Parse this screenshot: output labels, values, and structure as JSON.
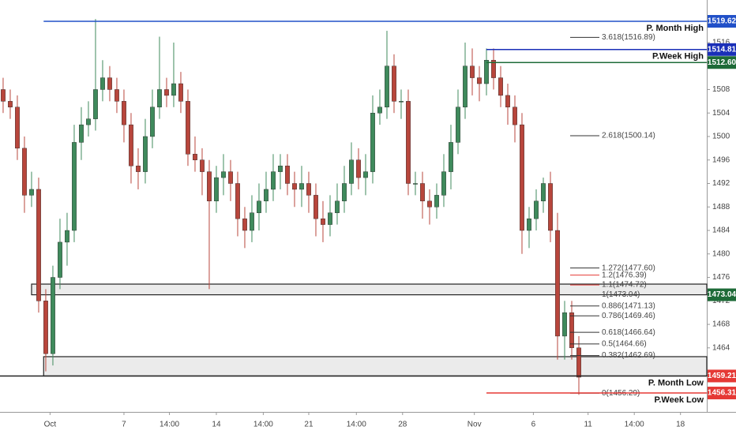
{
  "chart_data": {
    "type": "candlestick",
    "xlim": [
      -0.44,
      99
    ],
    "ylim": [
      1453.09,
      1523.25
    ],
    "yticks": [
      1464,
      1468,
      1472,
      1476,
      1480,
      1484,
      1488,
      1492,
      1496,
      1500,
      1504,
      1508,
      1512,
      1516
    ],
    "xticks": [
      {
        "value": 6.6,
        "label": "Oct"
      },
      {
        "value": 17,
        "label": "7"
      },
      {
        "value": 23.4,
        "label": "14:00"
      },
      {
        "value": 30,
        "label": "14"
      },
      {
        "value": 36.6,
        "label": "14:00"
      },
      {
        "value": 43,
        "label": "21"
      },
      {
        "value": 49.7,
        "label": "14:00"
      },
      {
        "value": 56.2,
        "label": "28"
      },
      {
        "value": 66.3,
        "label": "Nov"
      },
      {
        "value": 74.6,
        "label": "6"
      },
      {
        "value": 82.3,
        "label": "11"
      },
      {
        "value": 88.8,
        "label": "14:00"
      },
      {
        "value": 95.3,
        "label": "18"
      }
    ],
    "up_color": "#3f8a5c",
    "down_color": "#b8463c",
    "open": [
      1508,
      1506,
      1505,
      1498,
      1490,
      1491,
      1472,
      1463,
      1476,
      1482,
      1484,
      1499,
      1502,
      1503,
      1508,
      1510,
      1508,
      1506,
      1502,
      1495,
      1494,
      1500,
      1505,
      1508,
      1507,
      1509,
      1506,
      1497,
      1496,
      1494,
      1489,
      1493,
      1494,
      1492,
      1486,
      1484,
      1487,
      1489,
      1491,
      1494,
      1495,
      1492,
      1491,
      1492,
      1490,
      1486,
      1485,
      1487,
      1489,
      1492,
      1496,
      1493,
      1494,
      1504,
      1505,
      1512,
      1506,
      1506,
      1492,
      1492,
      1489,
      1488,
      1490,
      1494,
      1499,
      1505,
      1512,
      1510,
      1509,
      1513,
      1510,
      1507,
      1505,
      1502,
      1484,
      1486,
      1489,
      1492,
      1484,
      1466,
      1470,
      1464
    ],
    "high": [
      1510,
      1508,
      1507,
      1500,
      1494,
      1493,
      1474,
      1478,
      1486,
      1487,
      1502,
      1505,
      1506,
      1520,
      1513,
      1512,
      1510,
      1508,
      1504,
      1498,
      1503,
      1508,
      1517,
      1510,
      1516,
      1511,
      1508,
      1500,
      1498,
      1496,
      1495,
      1497,
      1496,
      1494,
      1488,
      1490,
      1492,
      1494,
      1497,
      1497,
      1497,
      1494,
      1495,
      1494,
      1492,
      1489,
      1490,
      1492,
      1495,
      1499,
      1498,
      1497,
      1507,
      1508,
      1518,
      1514,
      1508,
      1508,
      1494,
      1494,
      1491,
      1492,
      1497,
      1502,
      1508,
      1516,
      1515,
      1512,
      1515,
      1515,
      1512,
      1509,
      1507,
      1504,
      1488,
      1491,
      1493,
      1494,
      1487,
      1472,
      1472,
      1466
    ],
    "low": [
      1504,
      1503,
      1496,
      1487,
      1488,
      1470,
      1460,
      1461,
      1474,
      1478,
      1482,
      1496,
      1500,
      1501,
      1506,
      1506,
      1504,
      1499,
      1492,
      1491,
      1492,
      1498,
      1503,
      1505,
      1505,
      1504,
      1495,
      1494,
      1490,
      1474,
      1487,
      1490,
      1489,
      1483,
      1481,
      1482,
      1484,
      1487,
      1489,
      1491,
      1490,
      1488,
      1488,
      1487,
      1483,
      1482,
      1483,
      1485,
      1487,
      1490,
      1491,
      1490,
      1492,
      1502,
      1503,
      1504,
      1503,
      1490,
      1490,
      1486,
      1485,
      1486,
      1488,
      1491,
      1497,
      1503,
      1507,
      1506,
      1507,
      1508,
      1505,
      1502,
      1499,
      1480,
      1481,
      1484,
      1487,
      1482,
      1462,
      1462,
      1462,
      1456
    ],
    "close": [
      1506,
      1505,
      1498,
      1490,
      1491,
      1472,
      1463,
      1476,
      1482,
      1484,
      1499,
      1502,
      1503,
      1508,
      1510,
      1508,
      1506,
      1502,
      1495,
      1494,
      1500,
      1505,
      1508,
      1507,
      1509,
      1506,
      1497,
      1496,
      1494,
      1489,
      1493,
      1494,
      1492,
      1486,
      1484,
      1487,
      1489,
      1491,
      1494,
      1495,
      1492,
      1491,
      1492,
      1490,
      1486,
      1485,
      1487,
      1489,
      1492,
      1496,
      1493,
      1494,
      1504,
      1505,
      1512,
      1506,
      1506,
      1492,
      1492,
      1489,
      1488,
      1490,
      1494,
      1499,
      1505,
      1512,
      1510,
      1509,
      1513,
      1510,
      1507,
      1505,
      1502,
      1484,
      1486,
      1489,
      1492,
      1484,
      1466,
      1470,
      1464,
      1459
    ],
    "zones": [
      {
        "from": 4.0,
        "high": 1474.86,
        "low": 1473.04
      },
      {
        "from": 5.7,
        "high": 1462.5,
        "low": 1459.21
      }
    ],
    "levels": [
      {
        "name": "P. Month High",
        "price": 1519.62,
        "color": "#2150c8",
        "from": 5.7
      },
      {
        "name": "P.Week High",
        "price": 1514.81,
        "color": "#1a2fb8",
        "from": 68
      },
      {
        "price": {
          "value": 1512.6,
          "label": "1512.60"
        },
        "color": "#1e6b38",
        "from": 68
      },
      {
        "price": 1473.04,
        "color": "#1e6b38"
      },
      {
        "name": "P. Month Low",
        "price": 1459.21,
        "color": "#e53935",
        "line": "#222222",
        "from": -0.44
      },
      {
        "name": "P.Week Low",
        "price": 1456.31,
        "color": "#e53935",
        "from": 68
      }
    ],
    "fib": [
      {
        "label": "3.618(1516.89)",
        "value": 1516.89,
        "color": "#333333"
      },
      {
        "label": "2.618(1500.14)",
        "value": 1500.14,
        "color": "#333333"
      },
      {
        "label": "1.272(1477.60)",
        "value": 1477.6,
        "color": "#333333"
      },
      {
        "label": "1.2(1476.39)",
        "value": 1476.39,
        "color": "#e53935"
      },
      {
        "label": "1.1(1474.72)",
        "value": 1474.72,
        "color": "#e53935"
      },
      {
        "label": "1(1473.04)",
        "value": 1473.04,
        "color": "#333333"
      },
      {
        "label": "0.886(1471.13)",
        "value": 1471.13,
        "color": "#333333"
      },
      {
        "label": "0.786(1469.46)",
        "value": 1469.46,
        "color": "#333333"
      },
      {
        "label": "0.618(1466.64)",
        "value": 1466.64,
        "color": "#333333"
      },
      {
        "label": "0.5(1464.66)",
        "value": 1464.66,
        "color": "#333333"
      },
      {
        "label": "0.382(1462.69)",
        "value": 1462.69,
        "color": "#333333"
      },
      {
        "label": "0(1456.29)",
        "value": 1456.29,
        "color": "#333333"
      }
    ]
  }
}
